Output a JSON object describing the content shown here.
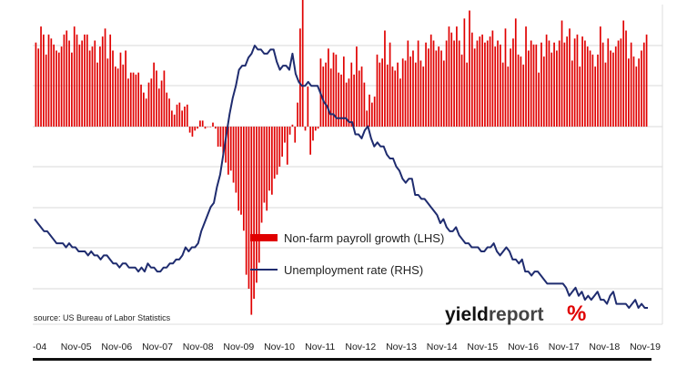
{
  "chart_data": {
    "type": "bar+line",
    "x_tick_labels": [
      "-04",
      "Nov-05",
      "Nov-06",
      "Nov-07",
      "Nov-08",
      "Nov-09",
      "Nov-10",
      "Nov-11",
      "Nov-12",
      "Nov-13",
      "Nov-14",
      "Nov-15",
      "Nov-16",
      "Nov-17",
      "Nov-18",
      "Nov-19"
    ],
    "series": [
      {
        "name": "Non-farm payroll growth (LHS)",
        "kind": "bar",
        "axis": "left",
        "color": "#e00000",
        "values": [
          210,
          195,
          250,
          230,
          180,
          230,
          220,
          205,
          190,
          185,
          200,
          230,
          240,
          215,
          185,
          250,
          230,
          205,
          215,
          230,
          230,
          190,
          200,
          215,
          160,
          200,
          225,
          245,
          170,
          230,
          190,
          150,
          145,
          185,
          155,
          190,
          120,
          135,
          135,
          130,
          135,
          105,
          85,
          70,
          110,
          120,
          160,
          140,
          95,
          115,
          140,
          85,
          70,
          40,
          30,
          55,
          60,
          40,
          50,
          55,
          -15,
          -25,
          -10,
          -5,
          15,
          15,
          -5,
          0,
          0,
          10,
          -5,
          -50,
          -50,
          -70,
          -90,
          -120,
          -110,
          -140,
          -165,
          -210,
          -220,
          -260,
          -370,
          -405,
          -470,
          -430,
          -390,
          -340,
          -240,
          -190,
          -210,
          -160,
          -170,
          -130,
          -120,
          -100,
          -75,
          -40,
          -95,
          -20,
          5,
          -40,
          60,
          245,
          370,
          -10,
          100,
          -70,
          -35,
          -10,
          -5,
          170,
          150,
          160,
          195,
          145,
          185,
          180,
          135,
          130,
          175,
          110,
          120,
          160,
          130,
          200,
          140,
          150,
          110,
          40,
          80,
          60,
          75,
          180,
          160,
          170,
          240,
          155,
          210,
          150,
          140,
          160,
          120,
          170,
          165,
          215,
          175,
          190,
          160,
          215,
          165,
          150,
          210,
          195,
          230,
          215,
          190,
          200,
          190,
          165,
          215,
          250,
          235,
          215,
          250,
          215,
          180,
          270,
          160,
          290,
          235,
          195,
          215,
          225,
          230,
          210,
          215,
          225,
          240,
          200,
          215,
          205,
          160,
          245,
          150,
          195,
          220,
          270,
          180,
          175,
          155,
          250,
          190,
          215,
          205,
          205,
          135,
          210,
          175,
          230,
          215,
          185,
          210,
          190,
          215,
          265,
          210,
          225,
          245,
          165,
          220,
          230,
          150,
          225,
          215,
          200,
          190,
          180,
          150,
          180,
          250,
          210,
          160,
          220,
          190,
          185,
          200,
          215,
          220,
          265,
          240,
          170,
          210,
          175,
          150,
          170,
          190,
          210,
          230
        ],
        "ylim": [
          -450,
          450
        ]
      },
      {
        "name": "Unemployment rate (RHS)",
        "kind": "line",
        "axis": "right",
        "color": "#1f2c6f",
        "values": [
          5.7,
          5.6,
          5.5,
          5.4,
          5.4,
          5.3,
          5.2,
          5.1,
          5.1,
          5.1,
          5.0,
          5.1,
          5.0,
          5.0,
          4.9,
          4.9,
          4.9,
          4.8,
          4.9,
          4.8,
          4.8,
          4.7,
          4.8,
          4.8,
          4.7,
          4.6,
          4.6,
          4.5,
          4.6,
          4.6,
          4.5,
          4.5,
          4.5,
          4.4,
          4.5,
          4.4,
          4.6,
          4.5,
          4.5,
          4.4,
          4.4,
          4.5,
          4.5,
          4.6,
          4.6,
          4.7,
          4.7,
          4.8,
          5.0,
          4.9,
          5.0,
          5.0,
          5.1,
          5.4,
          5.6,
          5.8,
          6.0,
          6.1,
          6.5,
          6.8,
          7.3,
          7.8,
          8.3,
          8.7,
          9.0,
          9.4,
          9.5,
          9.5,
          9.7,
          9.8,
          10.0,
          9.9,
          9.9,
          9.8,
          9.8,
          9.9,
          9.9,
          9.6,
          9.4,
          9.5,
          9.5,
          9.4,
          9.8,
          9.3,
          9.1,
          9.0,
          9.0,
          9.1,
          9.0,
          9.0,
          9.0,
          8.8,
          8.6,
          8.5,
          8.3,
          8.3,
          8.2,
          8.2,
          8.2,
          8.2,
          8.1,
          8.1,
          7.8,
          7.8,
          7.7,
          7.9,
          8.0,
          7.7,
          7.5,
          7.6,
          7.5,
          7.5,
          7.3,
          7.2,
          7.2,
          7.0,
          6.9,
          6.7,
          6.6,
          6.7,
          6.7,
          6.3,
          6.3,
          6.2,
          6.2,
          6.1,
          6.0,
          5.9,
          5.8,
          5.6,
          5.7,
          5.5,
          5.4,
          5.4,
          5.5,
          5.3,
          5.2,
          5.1,
          5.1,
          5.0,
          5.0,
          5.0,
          4.9,
          4.9,
          5.0,
          5.0,
          5.1,
          4.9,
          4.8,
          4.9,
          5.0,
          4.9,
          4.7,
          4.7,
          4.6,
          4.7,
          4.4,
          4.4,
          4.3,
          4.4,
          4.4,
          4.3,
          4.2,
          4.1,
          4.1,
          4.1,
          4.1,
          4.1,
          4.1,
          4.0,
          3.8,
          3.9,
          4.0,
          3.8,
          3.9,
          3.7,
          3.8,
          3.7,
          3.8,
          3.9,
          3.7,
          3.7,
          3.6,
          3.8,
          3.9,
          3.6,
          3.6,
          3.6,
          3.6,
          3.5,
          3.6,
          3.7,
          3.5,
          3.6,
          3.5,
          3.5
        ],
        "ylim": [
          3.0,
          10.5
        ]
      }
    ],
    "legend": [
      {
        "label": "Non-farm payroll growth (LHS)",
        "swatch": "bar"
      },
      {
        "label": "Unemployment rate (RHS)",
        "swatch": "line"
      }
    ],
    "source": "source: US Bureau of Labor Statistics",
    "grid": true
  },
  "branding": {
    "part1": "yield",
    "part2": "report",
    "symbol": "%",
    "symbol_colors": [
      "#2e9e3e",
      "#e00000"
    ]
  }
}
